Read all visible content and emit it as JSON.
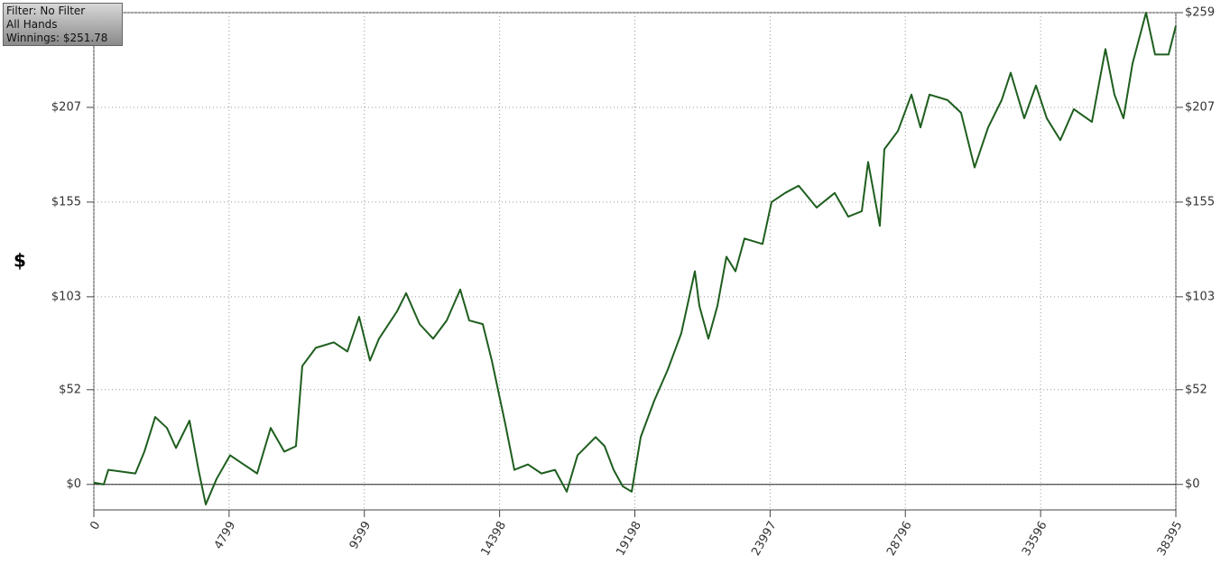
{
  "chart_data": {
    "type": "line",
    "annotations": [
      "Filter: No Filter",
      "All Hands",
      "Winnings: $251.78"
    ],
    "y_label": "$",
    "x": [
      0,
      352,
      512,
      1473,
      1793,
      2177,
      2594,
      2914,
      3394,
      3714,
      3970,
      4354,
      4834,
      5315,
      5795,
      6275,
      6756,
      7172,
      7396,
      7876,
      8516,
      8997,
      9414,
      9798,
      10118,
      10758,
      11080,
      11560,
      12040,
      12521,
      13001,
      13321,
      13801,
      14122,
      14602,
      14922,
      15403,
      15883,
      16363,
      16780,
      17164,
      17805,
      18125,
      18445,
      18765,
      19085,
      19406,
      19886,
      20366,
      20846,
      21327,
      21487,
      21807,
      22127,
      22447,
      22768,
      23088,
      23728,
      24048,
      24529,
      25009,
      25649,
      26290,
      26770,
      27251,
      27475,
      27891,
      28051,
      28532,
      29012,
      29332,
      29652,
      30293,
      30773,
      31253,
      31734,
      32214,
      32534,
      33015,
      33431,
      33815,
      34295,
      34775,
      35416,
      35896,
      36216,
      36536,
      36857,
      37337,
      37657,
      38137,
      38395
    ],
    "series": [
      {
        "color": "#1e5e1e",
        "values": [
          1,
          0,
          8,
          6,
          18,
          37,
          31,
          20,
          35,
          8,
          -11,
          3,
          16,
          11,
          6,
          31,
          18,
          21,
          65,
          75,
          78,
          73,
          92,
          68,
          80,
          95,
          105,
          88,
          80,
          90,
          107,
          90,
          88,
          68,
          33,
          8,
          11,
          6,
          8,
          -4,
          16,
          26,
          21,
          8,
          -1,
          -4,
          26,
          46,
          63,
          83,
          117,
          98,
          80,
          98,
          125,
          117,
          135,
          132,
          155,
          160,
          164,
          152,
          160,
          147,
          150,
          177,
          142,
          184,
          194,
          214,
          196,
          214,
          211,
          204,
          174,
          196,
          211,
          226,
          201,
          219,
          201,
          189,
          206,
          199,
          239,
          214,
          201,
          231,
          259,
          236,
          236,
          251.78
        ]
      }
    ],
    "xlim": [
      0,
      38395
    ],
    "xticks": [
      0,
      4799,
      9599,
      14398,
      19198,
      23997,
      28796,
      33596,
      38395
    ],
    "ylim": [
      -14,
      259
    ],
    "yticks": [
      {
        "value": 0,
        "label": "$0"
      },
      {
        "value": 52,
        "label": "$52"
      },
      {
        "value": 103,
        "label": "$103"
      },
      {
        "value": 155,
        "label": "$155"
      },
      {
        "value": 207,
        "label": "$207"
      },
      {
        "value": 259,
        "label": "$259"
      }
    ],
    "grid": true
  }
}
